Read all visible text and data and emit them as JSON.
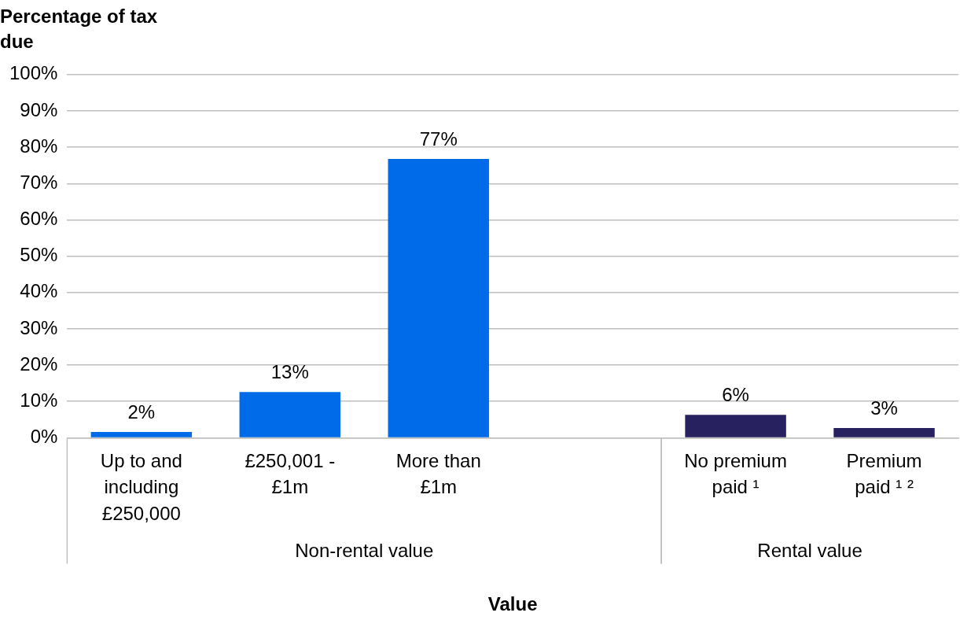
{
  "chart_data": {
    "type": "bar",
    "xlabel": "Value",
    "ylabel": "Percentage of tax due",
    "categories": [
      "Up to and including £250,000",
      "£250,001 - £1m",
      "More than £1m",
      null,
      "No premium paid ¹",
      "Premium paid ¹ ²"
    ],
    "values": [
      1.6,
      12.6,
      76.8,
      null,
      6.3,
      2.7
    ],
    "value_labels": [
      "2%",
      "13%",
      "77%",
      null,
      "6%",
      "3%"
    ],
    "colors": [
      "#006be8",
      "#006be8",
      "#006be8",
      "#006be8",
      "#27225f",
      "#27225f"
    ],
    "annotations": [
      "Non-rental value",
      "Rental value"
    ],
    "ylim": [
      0,
      100
    ],
    "yticks": [
      {
        "value": 0,
        "label": "0%"
      },
      {
        "value": 10,
        "label": "10%"
      },
      {
        "value": 20,
        "label": "20%"
      },
      {
        "value": 30,
        "label": "30%"
      },
      {
        "value": 40,
        "label": "40%"
      },
      {
        "value": 50,
        "label": "50%"
      },
      {
        "value": 60,
        "label": "60%"
      },
      {
        "value": 70,
        "label": "70%"
      },
      {
        "value": 80,
        "label": "80%"
      },
      {
        "value": 90,
        "label": "90%"
      },
      {
        "value": 100,
        "label": "100%"
      }
    ],
    "grid": "y"
  }
}
